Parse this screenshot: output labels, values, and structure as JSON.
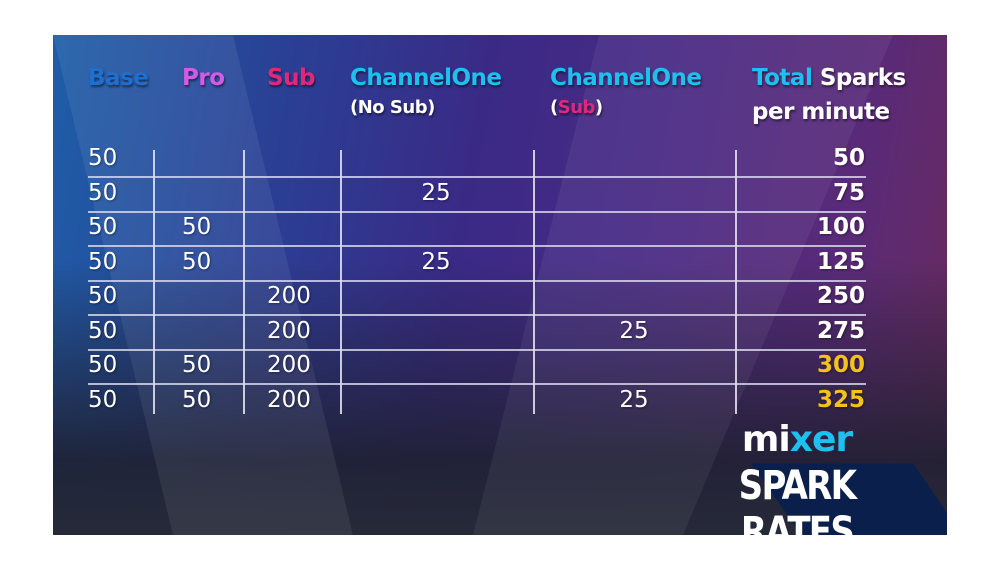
{
  "headers": {
    "base": "Base",
    "pro": "Pro",
    "sub": "Sub",
    "ch1_nosub": "ChannelOne",
    "ch1_nosub_note": "(No Sub)",
    "ch1_sub": "ChannelOne",
    "ch1_sub_open": "(",
    "ch1_sub_note": "Sub",
    "ch1_sub_close": ")",
    "total_word": "Total",
    "total_rest": "Sparks",
    "total_line2": "per minute"
  },
  "colors": {
    "base": "#1f6fd0",
    "pro": "#d05ce8",
    "sub": "#e0287a",
    "cyan": "#1ec0f0",
    "gold": "#f5c21b"
  },
  "rows": [
    {
      "base": "50",
      "pro": "",
      "sub": "",
      "ch1_nosub": "",
      "ch1_sub": "",
      "total": "50"
    },
    {
      "base": "50",
      "pro": "",
      "sub": "",
      "ch1_nosub": "25",
      "ch1_sub": "",
      "total": "75"
    },
    {
      "base": "50",
      "pro": "50",
      "sub": "",
      "ch1_nosub": "",
      "ch1_sub": "",
      "total": "100"
    },
    {
      "base": "50",
      "pro": "50",
      "sub": "",
      "ch1_nosub": "25",
      "ch1_sub": "",
      "total": "125"
    },
    {
      "base": "50",
      "pro": "",
      "sub": "200",
      "ch1_nosub": "",
      "ch1_sub": "",
      "total": "250"
    },
    {
      "base": "50",
      "pro": "",
      "sub": "200",
      "ch1_nosub": "",
      "ch1_sub": "25",
      "total": "275"
    },
    {
      "base": "50",
      "pro": "50",
      "sub": "200",
      "ch1_nosub": "",
      "ch1_sub": "",
      "total": "300",
      "highlight": true
    },
    {
      "base": "50",
      "pro": "50",
      "sub": "200",
      "ch1_nosub": "",
      "ch1_sub": "25",
      "total": "325",
      "highlight": true
    }
  ],
  "logo": {
    "brand_a": "mi",
    "brand_x": "x",
    "brand_b": "er",
    "title": "SPARK RATES"
  }
}
